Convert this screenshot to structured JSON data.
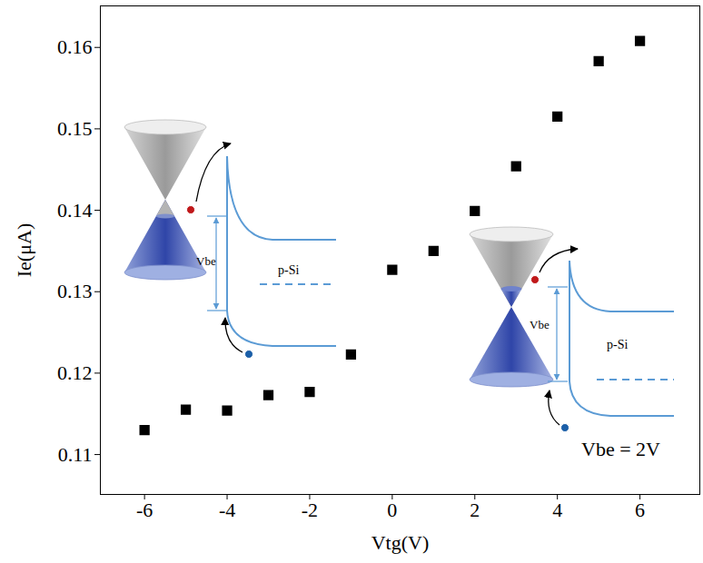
{
  "chart_data": {
    "type": "scatter",
    "x_label": "Vtg(V)",
    "y_label": "Ie(μA)",
    "x": [
      -6,
      -5,
      -4,
      -3,
      -2,
      -1,
      0,
      1,
      2,
      3,
      4,
      5,
      6
    ],
    "values": [
      0.113,
      0.1155,
      0.1154,
      0.1173,
      0.1177,
      0.1223,
      0.1327,
      0.135,
      0.1399,
      0.1454,
      0.1515,
      0.1583,
      0.1608
    ],
    "color": "#000000",
    "marker": "square",
    "xlim": [
      -7.07,
      7.45
    ],
    "xticks": [
      -6,
      -4,
      -2,
      0,
      2,
      4,
      6
    ],
    "ylim": [
      0.1051,
      0.1651
    ],
    "yticks": [
      0.11,
      0.12,
      0.13,
      0.14,
      0.15,
      0.16
    ],
    "grid": false,
    "annotations": [
      "Vbe",
      "p-Si",
      "Vbe",
      "p-Si",
      "Vbe = 2V"
    ]
  }
}
